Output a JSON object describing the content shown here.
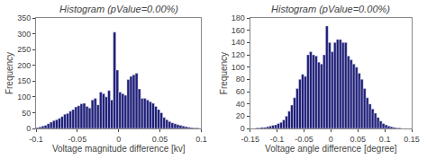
{
  "chart_data": [
    {
      "type": "histogram",
      "title": "Histogram (pValue=0.00%)",
      "xlabel": "Voltage magnitude difference [kv]",
      "ylabel": "Frequency",
      "bins": [
        -0.1,
        -0.09667,
        -0.09333,
        -0.09,
        -0.08667,
        -0.08333,
        -0.08,
        -0.07667,
        -0.07333,
        -0.07,
        -0.06667,
        -0.06333,
        -0.06,
        -0.05667,
        -0.05333,
        -0.05,
        -0.04667,
        -0.04333,
        -0.04,
        -0.03667,
        -0.03333,
        -0.03,
        -0.02667,
        -0.02333,
        -0.02,
        -0.01667,
        -0.01333,
        -0.01,
        -0.00667,
        -0.00333,
        0,
        0.00333,
        0.00667,
        0.01,
        0.01333,
        0.01667,
        0.02,
        0.02333,
        0.02667,
        0.03,
        0.03333,
        0.03667,
        0.04,
        0.04333,
        0.04667,
        0.05,
        0.05333,
        0.05667,
        0.06,
        0.06333,
        0.06667,
        0.07,
        0.07333,
        0.07667,
        0.08,
        0.08333,
        0.08667,
        0.09,
        0.09333,
        0.09667,
        0.1
      ],
      "values": [
        3,
        5,
        8,
        10,
        15,
        20,
        25,
        28,
        32,
        38,
        45,
        48,
        55,
        60,
        68,
        72,
        78,
        80,
        70,
        65,
        90,
        95,
        75,
        115,
        110,
        100,
        120,
        90,
        305,
        185,
        115,
        110,
        105,
        155,
        165,
        170,
        175,
        125,
        95,
        95,
        90,
        85,
        80,
        70,
        60,
        50,
        35,
        28,
        22,
        18,
        15,
        12,
        10,
        8,
        6,
        4,
        3,
        2,
        2,
        1
      ],
      "color": "#1f1f7a",
      "xlim": [
        -0.1,
        0.1
      ],
      "xticks": [
        -0.1,
        -0.05,
        0,
        0.05,
        0.1
      ],
      "ylim": [
        0,
        350
      ],
      "yticks": [
        0,
        50,
        100,
        150,
        200,
        250,
        300,
        350
      ],
      "grid": false
    },
    {
      "type": "histogram",
      "title": "Histogram (pValue=0.00%)",
      "xlabel": "Voltage angle difference [degree]",
      "ylabel": "Frequency",
      "bins": [
        -0.15,
        -0.145,
        -0.14,
        -0.135,
        -0.13,
        -0.125,
        -0.12,
        -0.115,
        -0.11,
        -0.105,
        -0.1,
        -0.095,
        -0.09,
        -0.085,
        -0.08,
        -0.075,
        -0.07,
        -0.065,
        -0.06,
        -0.055,
        -0.05,
        -0.045,
        -0.04,
        -0.035,
        -0.03,
        -0.025,
        -0.02,
        -0.015,
        -0.01,
        -0.005,
        0,
        0.005,
        0.01,
        0.015,
        0.02,
        0.025,
        0.03,
        0.035,
        0.04,
        0.045,
        0.05,
        0.055,
        0.06,
        0.065,
        0.07,
        0.075,
        0.08,
        0.085,
        0.09,
        0.095,
        0.1,
        0.105,
        0.11,
        0.115,
        0.12,
        0.125,
        0.13,
        0.135,
        0.14,
        0.145,
        0.15
      ],
      "values": [
        0,
        0,
        1,
        1,
        2,
        2,
        3,
        4,
        5,
        6,
        8,
        10,
        14,
        20,
        28,
        38,
        50,
        65,
        80,
        88,
        85,
        120,
        125,
        120,
        118,
        108,
        105,
        120,
        167,
        140,
        125,
        140,
        145,
        145,
        140,
        140,
        118,
        112,
        105,
        100,
        90,
        80,
        65,
        50,
        40,
        32,
        25,
        18,
        12,
        8,
        6,
        4,
        3,
        2,
        1,
        1,
        0,
        0,
        0,
        0
      ],
      "color": "#1f1f7a",
      "xlim": [
        -0.15,
        0.15
      ],
      "xticks": [
        -0.15,
        -0.1,
        -0.05,
        0,
        0.05,
        0.1,
        0.15
      ],
      "ylim": [
        0,
        180
      ],
      "yticks": [
        0,
        20,
        40,
        60,
        80,
        100,
        120,
        140,
        160,
        180
      ],
      "grid": false
    }
  ]
}
